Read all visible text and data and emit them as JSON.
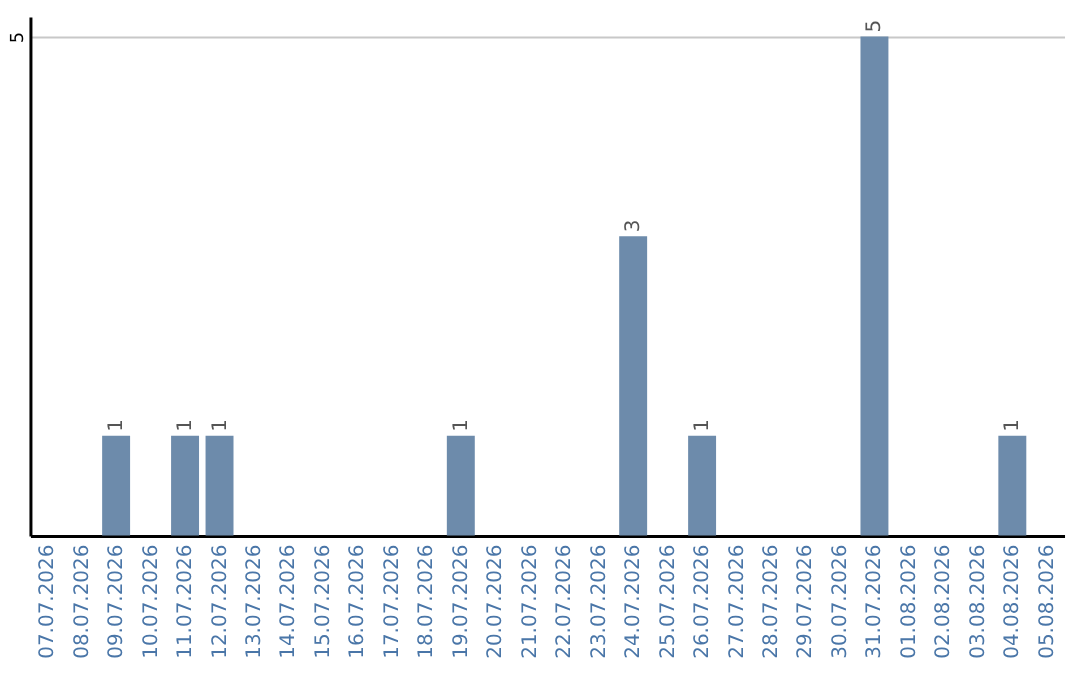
{
  "chart_data": {
    "type": "bar",
    "categories": [
      "07.07.2026",
      "08.07.2026",
      "09.07.2026",
      "10.07.2026",
      "11.07.2026",
      "12.07.2026",
      "13.07.2026",
      "14.07.2026",
      "15.07.2026",
      "16.07.2026",
      "17.07.2026",
      "18.07.2026",
      "19.07.2026",
      "20.07.2026",
      "21.07.2026",
      "22.07.2026",
      "23.07.2026",
      "24.07.2026",
      "25.07.2026",
      "26.07.2026",
      "27.07.2026",
      "28.07.2026",
      "29.07.2026",
      "30.07.2026",
      "31.07.2026",
      "01.08.2026",
      "02.08.2026",
      "03.08.2026",
      "04.08.2026",
      "05.08.2026"
    ],
    "values": [
      null,
      null,
      1,
      null,
      1,
      1,
      null,
      null,
      null,
      null,
      null,
      null,
      1,
      null,
      null,
      null,
      null,
      3,
      null,
      1,
      null,
      null,
      null,
      null,
      5,
      null,
      null,
      null,
      1,
      null
    ],
    "color": "#6d8bab",
    "ylim": [
      0,
      5.2
    ],
    "yticks": [
      5
    ],
    "grid": "y",
    "data_labels": true
  }
}
